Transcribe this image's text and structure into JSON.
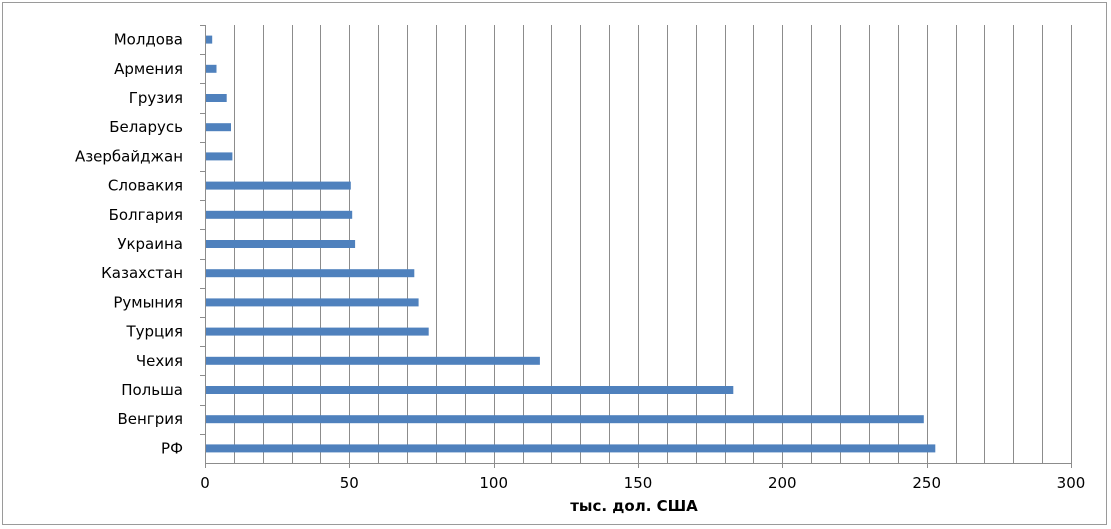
{
  "chart_data": {
    "type": "bar",
    "orientation": "horizontal",
    "categories": [
      "Молдова",
      "Армения",
      "Грузия",
      "Беларусь",
      "Азербайджан",
      "Словакия",
      "Болгария",
      "Украина",
      "Казахстан",
      "Румыния",
      "Турция",
      "Чехия",
      "Польша",
      "Венгрия",
      "РФ"
    ],
    "values": [
      2.5,
      4,
      7.5,
      9,
      9.5,
      50.5,
      51,
      52,
      72.5,
      74,
      77.5,
      116,
      183,
      249,
      253
    ],
    "xlabel": "тыс. дол. США",
    "xlim": [
      0,
      300
    ],
    "xticks": [
      0,
      50,
      100,
      150,
      200,
      250,
      300
    ],
    "grid": "vertical",
    "grid_step": 10,
    "legend": "none",
    "bar_color": "#4f81bd",
    "grid_color": "#8c8c8c"
  }
}
